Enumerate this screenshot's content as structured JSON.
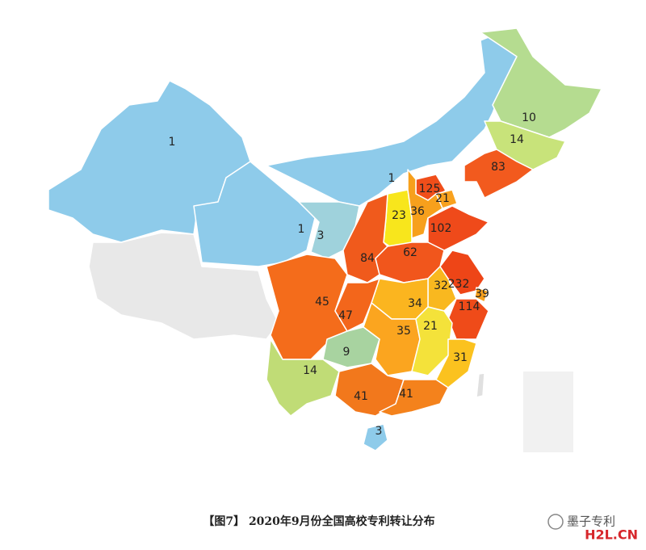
{
  "caption": "【图7】 2020年9月份全国高校专利转让分布",
  "watermark": "墨子专利",
  "site": "H2L.CN",
  "regions": [
    {
      "value": 1,
      "color": "#8ecbea"
    },
    {
      "value": 1,
      "color": "#8ecbea"
    },
    {
      "value": 1,
      "color": "#8ecbea"
    },
    {
      "value": 3,
      "color": "#9fd2dc"
    },
    {
      "value": 10,
      "color": "#b5dc90"
    },
    {
      "value": 14,
      "color": "#c8e37a"
    },
    {
      "value": 83,
      "color": "#f25a1e"
    },
    {
      "value": 125,
      "color": "#f04e1a"
    },
    {
      "value": 21,
      "color": "#f9a21e"
    },
    {
      "value": 23,
      "color": "#f8e61c"
    },
    {
      "value": 36,
      "color": "#f7a01c"
    },
    {
      "value": 102,
      "color": "#ef4a1a"
    },
    {
      "value": 84,
      "color": "#f05a1c"
    },
    {
      "value": 62,
      "color": "#f1561c"
    },
    {
      "value": 32,
      "color": "#f9b81f"
    },
    {
      "value": 232,
      "color": "#ee4517"
    },
    {
      "value": 39,
      "color": "#f5a01e"
    },
    {
      "value": 114,
      "color": "#ef4b19"
    },
    {
      "value": 34,
      "color": "#fbb51f"
    },
    {
      "value": 45,
      "color": "#f46c1b"
    },
    {
      "value": 47,
      "color": "#f3661b"
    },
    {
      "value": 35,
      "color": "#fba51f"
    },
    {
      "value": 21,
      "color": "#f4e23a"
    },
    {
      "value": 31,
      "color": "#fbc21f"
    },
    {
      "value": 9,
      "color": "#a8d3a0"
    },
    {
      "value": 14,
      "color": "#c0dc76"
    },
    {
      "value": 41,
      "color": "#f2781c"
    },
    {
      "value": 41,
      "color": "#f4821c"
    },
    {
      "value": 3,
      "color": "#8ecbea"
    }
  ]
}
